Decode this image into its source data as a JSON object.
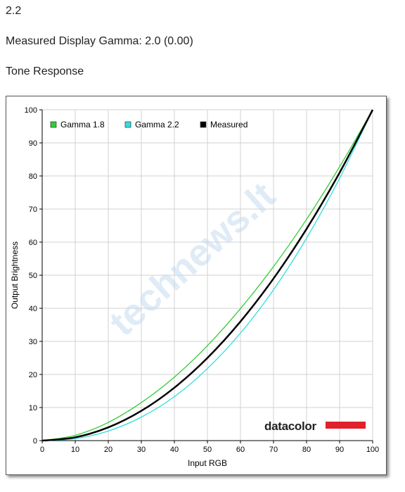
{
  "header": {
    "gamma_value": "2.2",
    "measured_label": "Measured Display Gamma: 2.0 (0.00)",
    "section_title": "Tone Response"
  },
  "chart_data": {
    "type": "line",
    "xlabel": "Input RGB",
    "ylabel": "Output Brightness",
    "xlim": [
      0,
      100
    ],
    "ylim": [
      0,
      100
    ],
    "xticks": [
      0,
      10,
      20,
      30,
      40,
      50,
      60,
      70,
      80,
      90,
      100
    ],
    "yticks": [
      0,
      10,
      20,
      30,
      40,
      50,
      60,
      70,
      80,
      90,
      100
    ],
    "grid": true,
    "legend_position": "top-left",
    "watermark": "technews.lt",
    "logo": "datacolor",
    "x": [
      0,
      10,
      20,
      30,
      40,
      50,
      60,
      70,
      80,
      90,
      100
    ],
    "series": [
      {
        "name": "Gamma 1.8",
        "color": "#33cc33",
        "values": [
          0,
          1.6,
          5.5,
          11.5,
          19.2,
          28.7,
          39.9,
          52.6,
          66.9,
          82.8,
          100
        ]
      },
      {
        "name": "Gamma 2.2",
        "color": "#33dddd",
        "values": [
          0,
          0.6,
          2.9,
          7.1,
          13.3,
          21.8,
          32.5,
          45.6,
          61.2,
          79.3,
          100
        ]
      },
      {
        "name": "Measured",
        "color": "#000000",
        "values": [
          0,
          1.0,
          4.0,
          9.0,
          16.0,
          25.0,
          36.0,
          49.0,
          64.0,
          81.0,
          100
        ]
      }
    ]
  }
}
